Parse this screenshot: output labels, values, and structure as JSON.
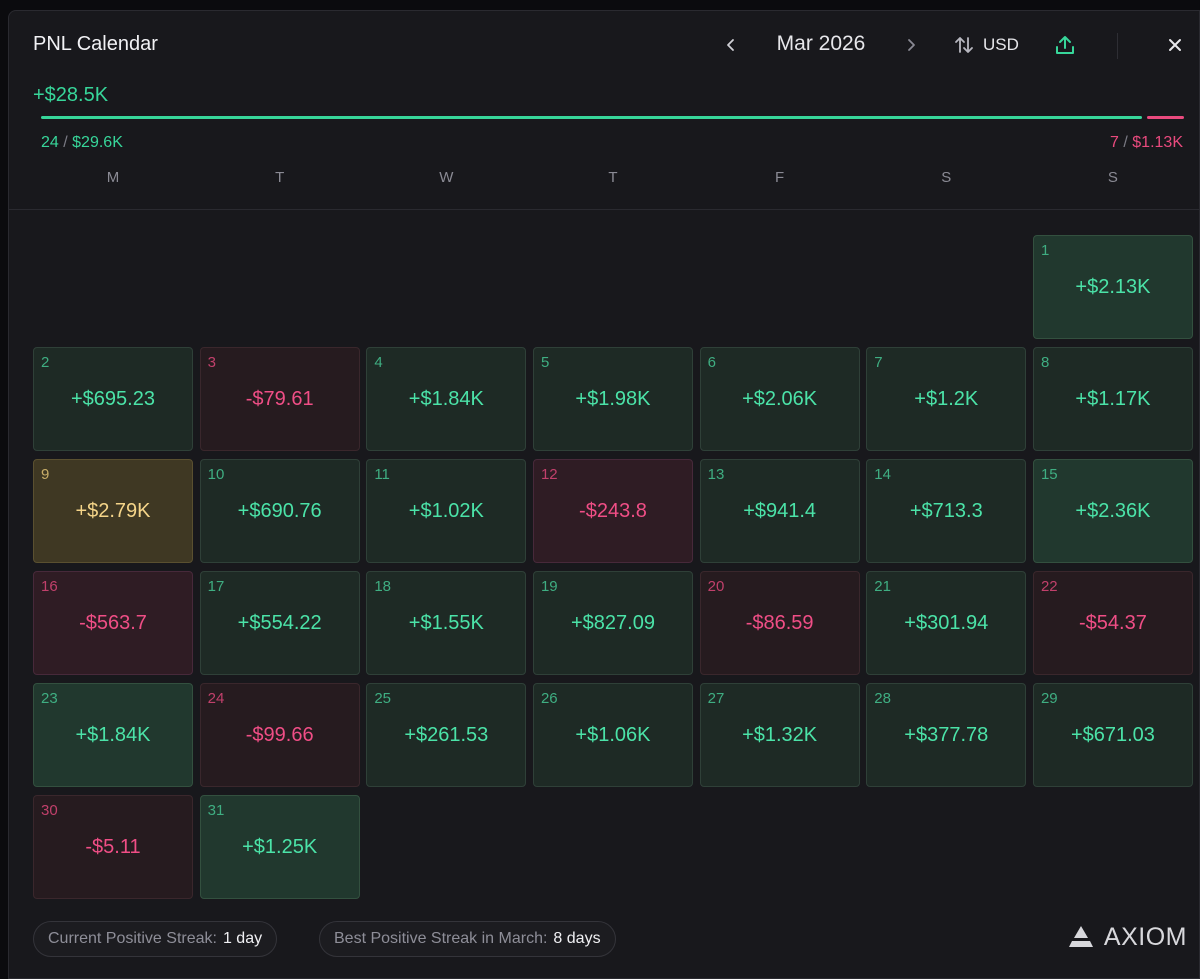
{
  "header": {
    "title": "PNL Calendar",
    "month_label": "Mar 2026",
    "currency_label": "USD"
  },
  "summary": {
    "total_pnl": "+$28.5K",
    "positive_days": "24",
    "positive_total": "$29.6K",
    "negative_days": "7",
    "negative_total": "$1.13K",
    "separator": "/",
    "positive_share": 0.963
  },
  "weekdays": [
    "M",
    "T",
    "W",
    "T",
    "F",
    "S",
    "S"
  ],
  "calendar": {
    "first_weekday_offset": 6,
    "days": [
      {
        "day": "1",
        "value": "+$2.13K",
        "state": "pos-strong"
      },
      {
        "day": "2",
        "value": "+$695.23",
        "state": "pos"
      },
      {
        "day": "3",
        "value": "-$79.61",
        "state": "neg"
      },
      {
        "day": "4",
        "value": "+$1.84K",
        "state": "pos"
      },
      {
        "day": "5",
        "value": "+$1.98K",
        "state": "pos"
      },
      {
        "day": "6",
        "value": "+$2.06K",
        "state": "pos"
      },
      {
        "day": "7",
        "value": "+$1.2K",
        "state": "pos"
      },
      {
        "day": "8",
        "value": "+$1.17K",
        "state": "pos"
      },
      {
        "day": "9",
        "value": "+$2.79K",
        "state": "best"
      },
      {
        "day": "10",
        "value": "+$690.76",
        "state": "pos"
      },
      {
        "day": "11",
        "value": "+$1.02K",
        "state": "pos"
      },
      {
        "day": "12",
        "value": "-$243.8",
        "state": "neg-strong"
      },
      {
        "day": "13",
        "value": "+$941.4",
        "state": "pos"
      },
      {
        "day": "14",
        "value": "+$713.3",
        "state": "pos"
      },
      {
        "day": "15",
        "value": "+$2.36K",
        "state": "pos-strong"
      },
      {
        "day": "16",
        "value": "-$563.7",
        "state": "neg-strong"
      },
      {
        "day": "17",
        "value": "+$554.22",
        "state": "pos"
      },
      {
        "day": "18",
        "value": "+$1.55K",
        "state": "pos"
      },
      {
        "day": "19",
        "value": "+$827.09",
        "state": "pos"
      },
      {
        "day": "20",
        "value": "-$86.59",
        "state": "neg"
      },
      {
        "day": "21",
        "value": "+$301.94",
        "state": "pos"
      },
      {
        "day": "22",
        "value": "-$54.37",
        "state": "neg"
      },
      {
        "day": "23",
        "value": "+$1.84K",
        "state": "pos-strong"
      },
      {
        "day": "24",
        "value": "-$99.66",
        "state": "neg"
      },
      {
        "day": "25",
        "value": "+$261.53",
        "state": "pos"
      },
      {
        "day": "26",
        "value": "+$1.06K",
        "state": "pos"
      },
      {
        "day": "27",
        "value": "+$1.32K",
        "state": "pos"
      },
      {
        "day": "28",
        "value": "+$377.78",
        "state": "pos"
      },
      {
        "day": "29",
        "value": "+$671.03",
        "state": "pos"
      },
      {
        "day": "30",
        "value": "-$5.11",
        "state": "neg"
      },
      {
        "day": "31",
        "value": "+$1.25K",
        "state": "pos-strong"
      }
    ]
  },
  "footer": {
    "current_streak_label": "Current Positive Streak:",
    "current_streak_value": "1 day",
    "best_streak_label": "Best Positive Streak in March:",
    "best_streak_value": "8 days",
    "brand_name": "AXIOM"
  },
  "colors": {
    "positive": "#37d69a",
    "negative": "#e94a7e",
    "best": "#f5d589"
  },
  "icons": {
    "prev": "chevron-left-icon",
    "next": "chevron-right-icon",
    "currency": "swap-vertical-icon",
    "share": "upload-icon",
    "close": "close-icon",
    "brand": "axiom-logo-icon"
  }
}
